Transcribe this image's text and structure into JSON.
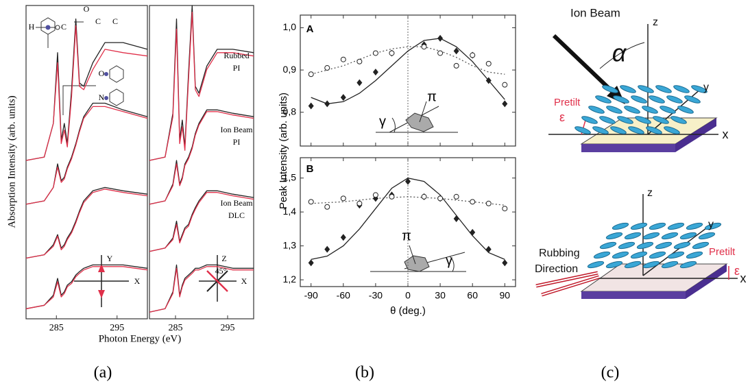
{
  "chart_data": [
    {
      "type": "line",
      "x_label": "Photon Energy (eV)",
      "y_label": "Absorption Intensity (arb. units)",
      "x": [
        280,
        283,
        284.5,
        285.2,
        285.8,
        286.3,
        286.8,
        287.5,
        288.2,
        288.8,
        289.5,
        291,
        293,
        296,
        300
      ],
      "xlim": [
        280,
        300
      ],
      "xticks": [
        285,
        295
      ],
      "ylim": [
        0.7,
        10
      ],
      "series": [
        {
          "color": "#222222",
          "values": [
            5.4,
            5.5,
            6.5,
            8.6,
            6.0,
            6.5,
            5.9,
            7.5,
            9.6,
            7.7,
            7.6,
            8.3,
            8.9,
            8.9,
            8.7
          ]
        },
        {
          "color": "#e0304a",
          "values": [
            5.4,
            5.5,
            6.5,
            8.3,
            5.9,
            6.3,
            5.8,
            7.3,
            9.4,
            7.6,
            7.5,
            8.1,
            8.7,
            8.6,
            8.5
          ]
        },
        {
          "color": "#222222",
          "values": [
            4.1,
            4.2,
            4.6,
            5.3,
            4.8,
            4.9,
            5.2,
            5.5,
            5.9,
            6.3,
            6.7,
            7.1,
            7.1,
            6.9,
            6.7
          ]
        },
        {
          "color": "#e0304a",
          "values": [
            4.1,
            4.2,
            4.6,
            5.2,
            4.75,
            4.85,
            5.15,
            5.45,
            5.85,
            6.25,
            6.65,
            7.0,
            7.0,
            6.85,
            6.65
          ]
        },
        {
          "color": "#222222",
          "values": [
            2.5,
            2.6,
            2.9,
            3.2,
            2.8,
            2.9,
            3.1,
            3.3,
            3.6,
            3.9,
            4.2,
            4.5,
            4.6,
            4.5,
            4.4
          ]
        },
        {
          "color": "#e0304a",
          "values": [
            2.5,
            2.6,
            2.85,
            3.15,
            2.75,
            2.85,
            3.05,
            3.25,
            3.55,
            3.85,
            4.15,
            4.45,
            4.55,
            4.45,
            4.35
          ]
        },
        {
          "color": "#222222",
          "values": [
            1.0,
            1.1,
            1.4,
            1.9,
            1.4,
            1.5,
            1.7,
            1.8,
            2.0,
            2.1,
            2.2,
            2.3,
            2.3,
            2.3,
            2.2
          ]
        },
        {
          "color": "#e0304a",
          "values": [
            1.0,
            1.1,
            1.35,
            1.8,
            1.35,
            1.45,
            1.65,
            1.75,
            1.95,
            2.05,
            2.15,
            2.25,
            2.25,
            2.25,
            2.15
          ]
        }
      ],
      "annotations": [
        "H",
        "C",
        "O",
        "C",
        "C",
        "O",
        "N",
        "Y",
        "X"
      ]
    },
    {
      "type": "line",
      "x": [
        280,
        283,
        284.5,
        285.2,
        285.8,
        286.3,
        286.8,
        287.5,
        288.2,
        288.8,
        289.5,
        291,
        293,
        296,
        300
      ],
      "xlim": [
        280,
        300
      ],
      "xticks": [
        285,
        295
      ],
      "ylim": [
        0.7,
        10
      ],
      "series": [
        {
          "color": "#222222",
          "values": [
            5.4,
            5.5,
            6.8,
            9.6,
            6.0,
            6.6,
            5.8,
            8.0,
            10.0,
            7.6,
            7.4,
            8.2,
            8.7,
            8.7,
            8.6
          ]
        },
        {
          "color": "#e0304a",
          "values": [
            5.4,
            5.5,
            6.7,
            9.3,
            5.9,
            6.4,
            5.7,
            7.8,
            9.8,
            7.5,
            7.3,
            8.1,
            8.6,
            8.6,
            8.5
          ]
        },
        {
          "color": "#222222",
          "values": [
            4.1,
            4.2,
            4.7,
            5.4,
            4.7,
            4.9,
            5.3,
            5.5,
            5.8,
            6.2,
            6.5,
            6.9,
            6.9,
            6.8,
            6.7
          ]
        },
        {
          "color": "#e0304a",
          "values": [
            4.1,
            4.2,
            4.65,
            5.3,
            4.65,
            4.85,
            5.25,
            5.45,
            5.75,
            6.15,
            6.45,
            6.85,
            6.85,
            6.75,
            6.65
          ]
        },
        {
          "color": "#222222",
          "values": [
            2.7,
            2.8,
            3.1,
            3.6,
            3.0,
            3.2,
            3.4,
            3.5,
            3.8,
            4.0,
            4.2,
            4.5,
            4.5,
            4.4,
            4.3
          ]
        },
        {
          "color": "#e0304a",
          "values": [
            2.7,
            2.8,
            3.05,
            3.5,
            2.95,
            3.15,
            3.35,
            3.45,
            3.75,
            3.95,
            4.15,
            4.45,
            4.45,
            4.35,
            4.25
          ]
        },
        {
          "color": "#222222",
          "values": [
            0.9,
            1.0,
            1.5,
            2.3,
            1.4,
            1.7,
            1.9,
            2.0,
            2.1,
            2.2,
            2.2,
            2.3,
            2.3,
            2.2,
            2.2
          ]
        },
        {
          "color": "#e0304a",
          "values": [
            0.9,
            1.0,
            1.45,
            2.2,
            1.35,
            1.65,
            1.85,
            1.95,
            2.05,
            2.15,
            2.15,
            2.25,
            2.25,
            2.15,
            2.15
          ]
        }
      ],
      "annotations": [
        "Rubbed",
        "PI",
        "Ion Beam",
        "PI",
        "Ion Beam",
        "DLC",
        "Z",
        "X",
        "45°"
      ]
    },
    {
      "type": "scatter",
      "y_label": "Peak Intensity (arb. units)",
      "xlim": [
        -100,
        100
      ],
      "xticks": [
        -90,
        -60,
        -30,
        0,
        30,
        60,
        90
      ],
      "xtick_labels": false,
      "ylim": [
        0.72,
        1.03
      ],
      "yticks": [
        {
          "value": 0.8,
          "label": "0,8"
        },
        {
          "value": 0.9,
          "label": "0,9"
        },
        {
          "value": 1.0,
          "label": "1,0"
        }
      ],
      "vline": 0,
      "series": [
        {
          "style": "solid",
          "color": "#222222",
          "x": [
            -90,
            -75,
            -60,
            -45,
            -30,
            -15,
            0,
            15,
            30,
            45,
            60,
            75,
            90
          ],
          "values": [
            0.835,
            0.82,
            0.825,
            0.845,
            0.875,
            0.91,
            0.945,
            0.97,
            0.975,
            0.955,
            0.92,
            0.875,
            0.83
          ]
        },
        {
          "style": "dashed",
          "color": "#555555",
          "x": [
            -90,
            -75,
            -60,
            -45,
            -30,
            -15,
            0,
            15,
            30,
            45,
            60,
            75,
            90
          ],
          "values": [
            0.89,
            0.9,
            0.91,
            0.925,
            0.94,
            0.95,
            0.955,
            0.955,
            0.945,
            0.93,
            0.91,
            0.895,
            0.89
          ]
        },
        {
          "style": "diamond",
          "color": "#222222",
          "x": [
            -90,
            -75,
            -60,
            -45,
            -30,
            -15,
            15,
            30,
            45,
            60,
            75,
            90
          ],
          "values": [
            0.815,
            0.82,
            0.835,
            0.87,
            0.895,
            0.94,
            0.96,
            0.975,
            0.945,
            0.935,
            0.875,
            0.82
          ]
        },
        {
          "style": "circle",
          "color": "#222222",
          "x": [
            -90,
            -75,
            -60,
            -45,
            -30,
            -15,
            15,
            30,
            45,
            60,
            75,
            90
          ],
          "values": [
            0.89,
            0.905,
            0.925,
            0.92,
            0.94,
            0.94,
            0.955,
            0.94,
            0.91,
            0.935,
            0.915,
            0.865
          ]
        }
      ],
      "annotations": [
        "A",
        "π",
        "γ"
      ]
    },
    {
      "type": "scatter",
      "x_label": "θ (deg.)",
      "xlim": [
        -100,
        100
      ],
      "xticks": [
        -90,
        -60,
        -30,
        0,
        30,
        60,
        90
      ],
      "xtick_labels": true,
      "ylim": [
        1.18,
        1.56
      ],
      "yticks": [
        {
          "value": 1.2,
          "label": "1,2"
        },
        {
          "value": 1.3,
          "label": "1,3"
        },
        {
          "value": 1.4,
          "label": "1,4"
        },
        {
          "value": 1.5,
          "label": "1,5"
        }
      ],
      "vline": 0,
      "series": [
        {
          "style": "solid",
          "color": "#222222",
          "x": [
            -90,
            -75,
            -60,
            -45,
            -30,
            -15,
            0,
            15,
            30,
            45,
            60,
            75,
            90
          ],
          "values": [
            1.26,
            1.27,
            1.3,
            1.35,
            1.41,
            1.47,
            1.5,
            1.49,
            1.45,
            1.39,
            1.33,
            1.28,
            1.26
          ]
        },
        {
          "style": "dashed",
          "color": "#555555",
          "x": [
            -90,
            -60,
            -30,
            0,
            30,
            60,
            90
          ],
          "values": [
            1.425,
            1.43,
            1.44,
            1.445,
            1.44,
            1.43,
            1.42
          ]
        },
        {
          "style": "diamond",
          "color": "#222222",
          "x": [
            -90,
            -75,
            -60,
            -45,
            -30,
            -15,
            0,
            15,
            30,
            45,
            60,
            75,
            90
          ],
          "values": [
            1.25,
            1.29,
            1.325,
            1.42,
            1.44,
            1.45,
            1.49,
            1.445,
            1.44,
            1.38,
            1.34,
            1.29,
            1.25
          ]
        },
        {
          "style": "circle",
          "color": "#222222",
          "x": [
            -90,
            -75,
            -60,
            -45,
            -30,
            -15,
            15,
            30,
            45,
            60,
            75,
            90
          ],
          "values": [
            1.43,
            1.415,
            1.44,
            1.425,
            1.45,
            1.445,
            1.445,
            1.44,
            1.445,
            1.43,
            1.425,
            1.41
          ]
        }
      ],
      "annotations": [
        "B",
        "π",
        "γ"
      ]
    }
  ],
  "diagram_labels": {
    "top": [
      "Ion Beam",
      "z",
      "y",
      "x",
      "α",
      "Pretilt",
      "ε"
    ],
    "bottom": [
      "z",
      "y",
      "x",
      "Rubbing",
      "Direction",
      "Pretilt",
      "ε"
    ]
  },
  "captions": [
    "(a)",
    "(b)",
    "(c)"
  ]
}
